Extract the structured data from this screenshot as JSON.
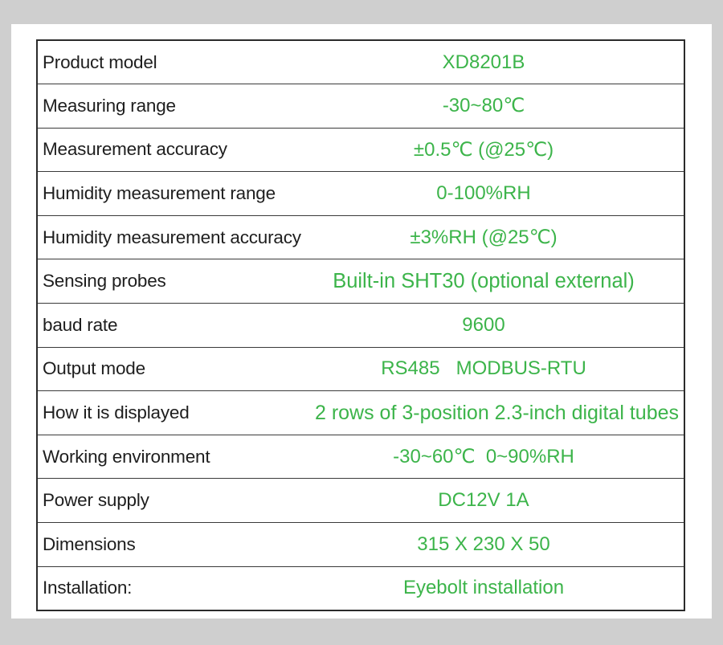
{
  "specs": [
    {
      "label": "Product model",
      "value": "XD8201B"
    },
    {
      "label": "Measuring range",
      "value": "-30~80℃"
    },
    {
      "label": "Measurement accuracy",
      "value": "±0.5℃ (@25℃)"
    },
    {
      "label": "Humidity measurement range",
      "value": "0-100%RH"
    },
    {
      "label": "Humidity measurement accuracy",
      "value": "±3%RH (@25℃)"
    },
    {
      "label": "Sensing probes",
      "value": "Built-in SHT30 (optional external)"
    },
    {
      "label": "baud rate",
      "value": "9600"
    },
    {
      "label": "Output mode",
      "value": "RS485   MODBUS-RTU"
    },
    {
      "label": "How it is displayed",
      "value": "2 rows of 3-position 2.3-inch digital tubes"
    },
    {
      "label": "Working environment",
      "value": "-30~60℃  0~90%RH"
    },
    {
      "label": "Power supply",
      "value": "DC12V 1A"
    },
    {
      "label": "Dimensions",
      "value": "315 X 230 X 50"
    },
    {
      "label": "Installation:",
      "value": "Eyebolt installation"
    }
  ],
  "colors": {
    "background": "#cfcfcf",
    "card": "#ffffff",
    "label_text": "#1e1e1e",
    "value_text": "#3cb44a",
    "border": "#2b2b2b"
  }
}
